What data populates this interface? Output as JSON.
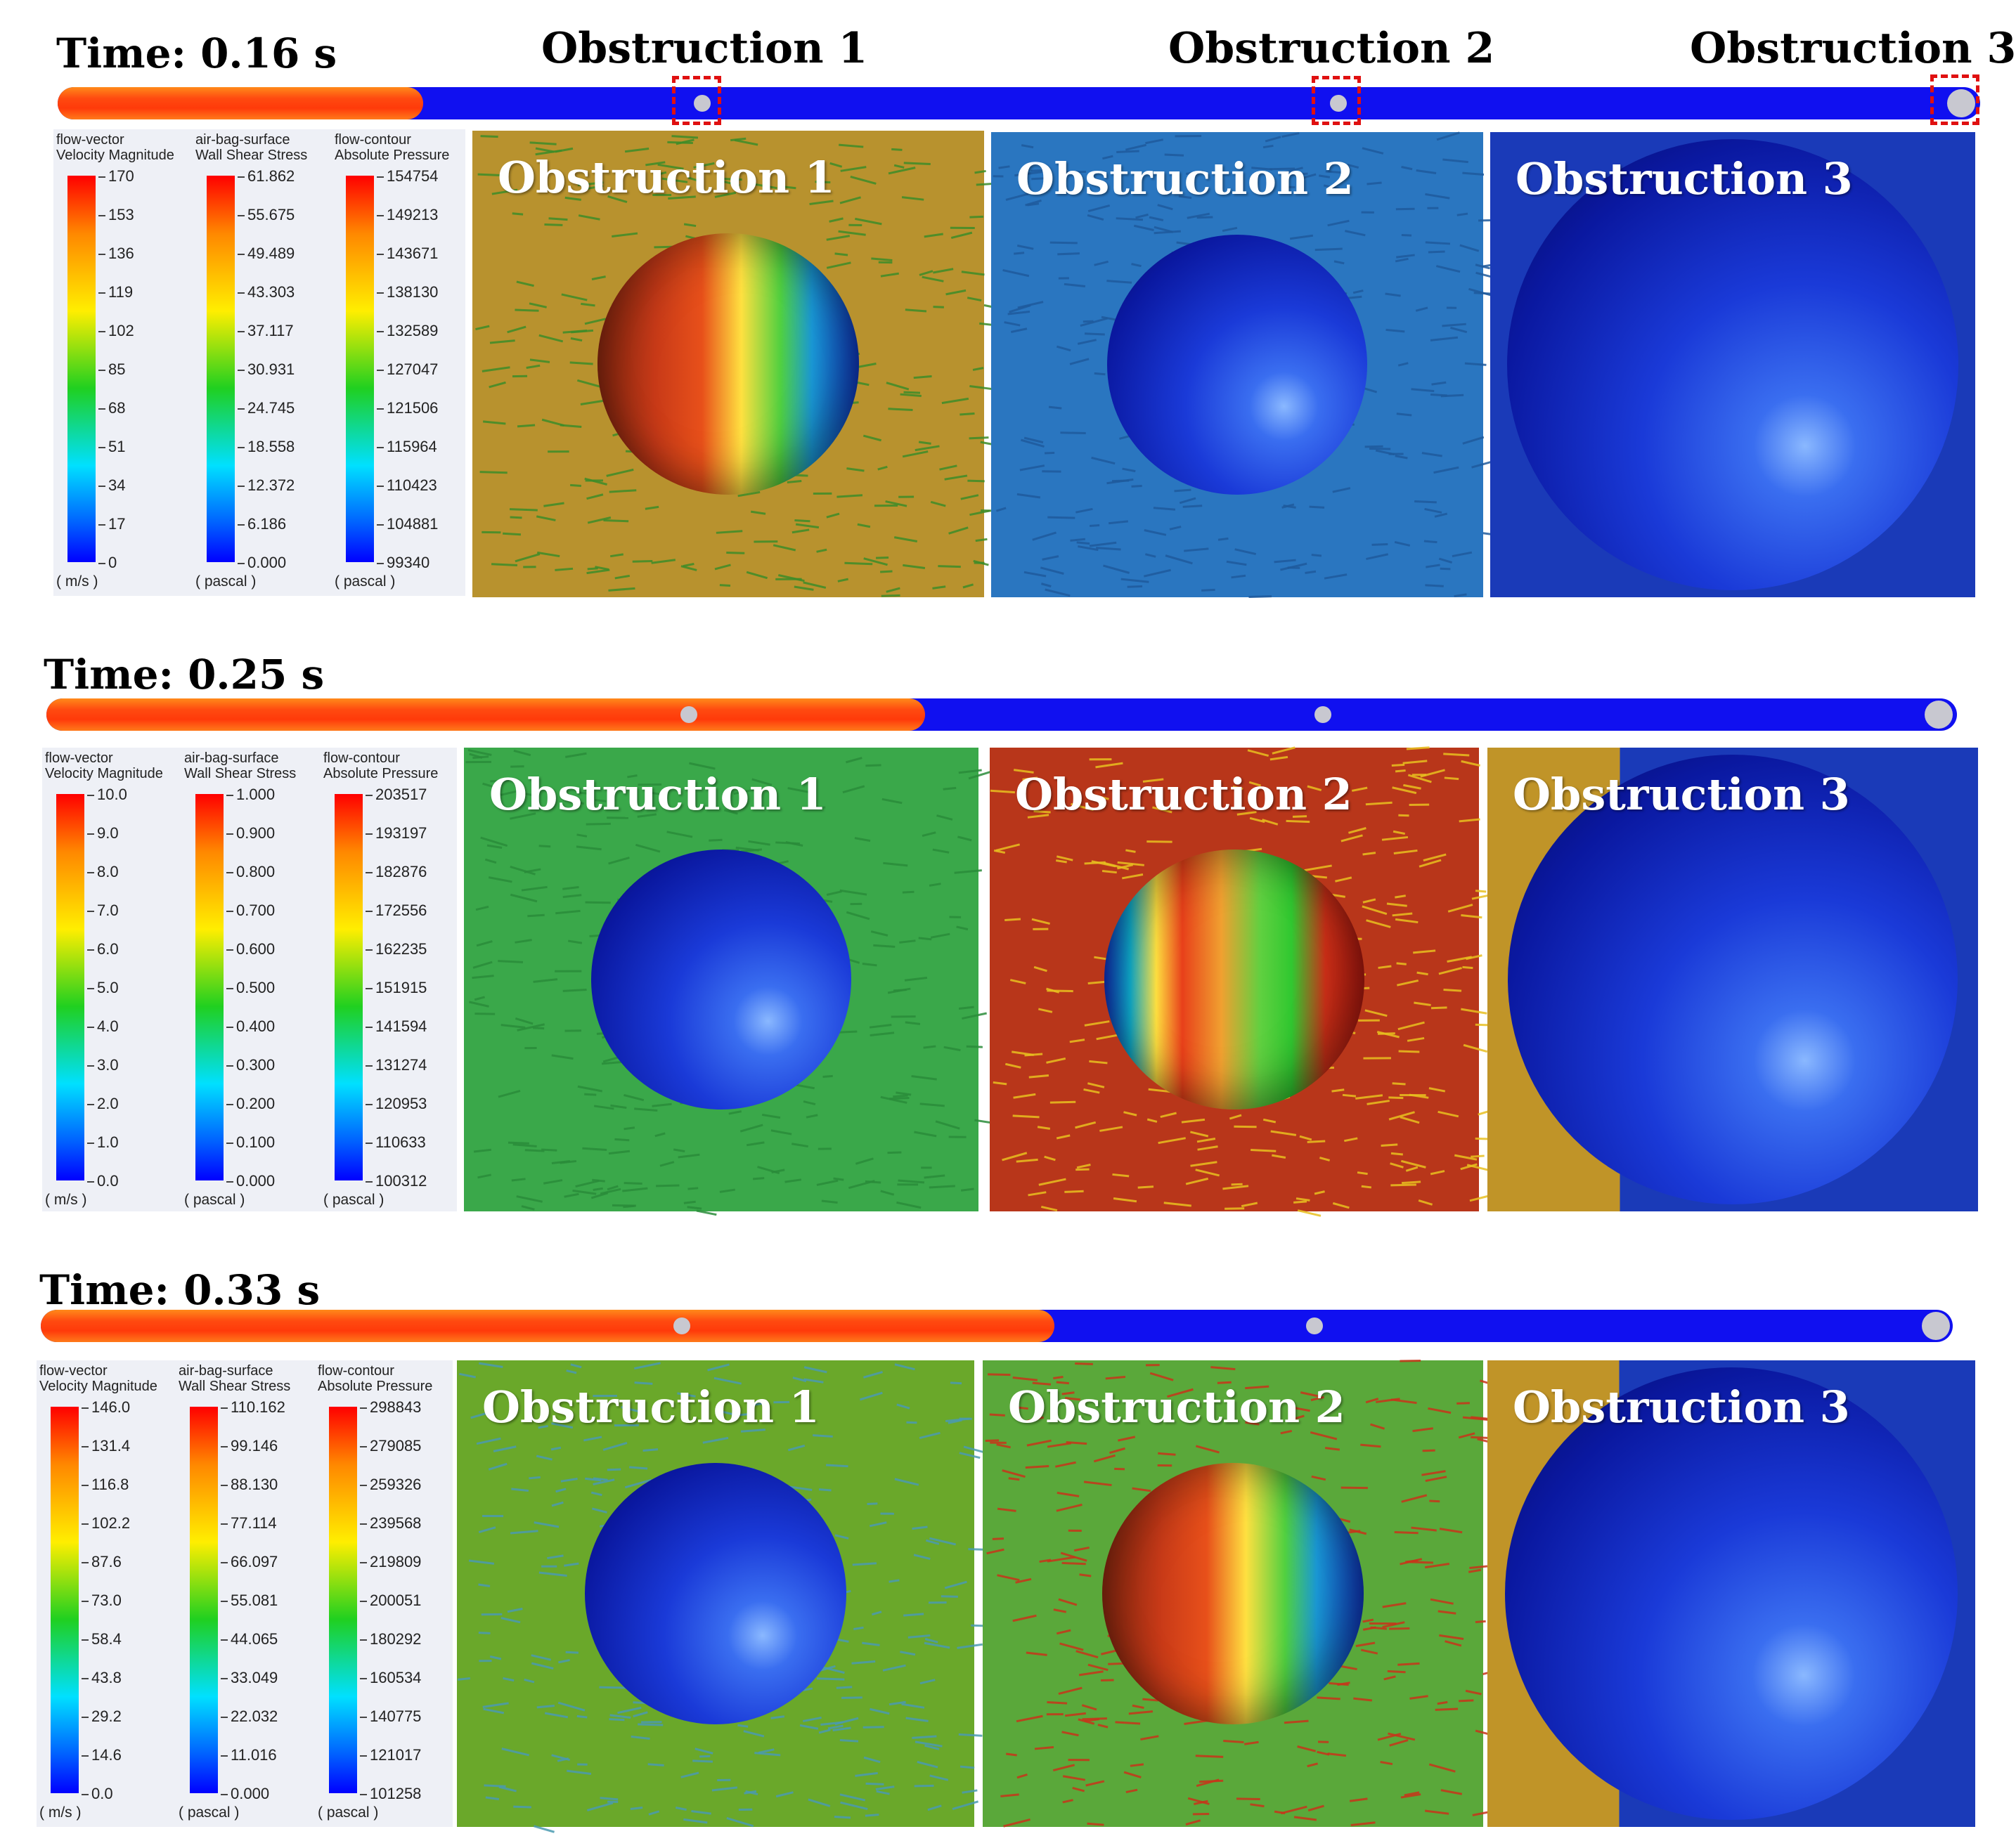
{
  "channel_headers": [
    "Obstruction 1",
    "Obstruction 2",
    "Obstruction 3"
  ],
  "panel_label_prefix": "Obstruction",
  "snapshots": [
    {
      "time": "Time: 0.16 s",
      "fill_fraction": 0.19,
      "legends": [
        {
          "title1": "flow-vector",
          "title2": "Velocity Magnitude",
          "ticks": [
            "170",
            "153",
            "136",
            "119",
            "102",
            "85",
            "68",
            "51",
            "34",
            "17",
            "0"
          ],
          "unit": "( m/s )"
        },
        {
          "title1": "air-bag-surface",
          "title2": "Wall Shear Stress",
          "ticks": [
            "61.862",
            "55.675",
            "49.489",
            "43.303",
            "37.117",
            "30.931",
            "24.745",
            "18.558",
            "12.372",
            "6.186",
            "0.000"
          ],
          "unit": "( pascal )"
        },
        {
          "title1": "flow-contour",
          "title2": "Absolute Pressure",
          "ticks": [
            "154754",
            "149213",
            "143671",
            "138130",
            "132589",
            "127047",
            "121506",
            "115964",
            "110423",
            "104881",
            "99340"
          ],
          "unit": "( pascal )"
        }
      ],
      "panels": [
        {
          "label": "Obstruction 1",
          "bg": "#b8922e",
          "sphere": "hot",
          "arrows": "#3c8c28"
        },
        {
          "label": "Obstruction 2",
          "bg": "#2a76c0",
          "sphere": "blue",
          "arrows": "#1e5a9c"
        },
        {
          "label": "Obstruction 3",
          "bg": "#1a3ab8",
          "sphere": "blue-big",
          "arrows": ""
        }
      ]
    },
    {
      "time": "Time: 0.25 s",
      "fill_fraction": 0.46,
      "legends": [
        {
          "title1": "flow-vector",
          "title2": "Velocity Magnitude",
          "ticks": [
            "10.0",
            "9.0",
            "8.0",
            "7.0",
            "6.0",
            "5.0",
            "4.0",
            "3.0",
            "2.0",
            "1.0",
            "0.0"
          ],
          "unit": "( m/s )"
        },
        {
          "title1": "air-bag-surface",
          "title2": "Wall Shear Stress",
          "ticks": [
            "1.000",
            "0.900",
            "0.800",
            "0.700",
            "0.600",
            "0.500",
            "0.400",
            "0.300",
            "0.200",
            "0.100",
            "0.000"
          ],
          "unit": "( pascal )"
        },
        {
          "title1": "flow-contour",
          "title2": "Absolute Pressure",
          "ticks": [
            "203517",
            "193197",
            "182876",
            "172556",
            "162235",
            "151915",
            "141594",
            "131274",
            "120953",
            "110633",
            "100312"
          ],
          "unit": "( pascal )"
        }
      ],
      "panels": [
        {
          "label": "Obstruction 1",
          "bg": "#3aa84a",
          "sphere": "blue",
          "arrows": "#2a8c3a"
        },
        {
          "label": "Obstruction 2",
          "bg": "#b8361a",
          "sphere": "hot2",
          "arrows": "#e8c020"
        },
        {
          "label": "Obstruction 3",
          "bg": "#c09428",
          "sphere": "blue-big",
          "arrows": ""
        }
      ]
    },
    {
      "time": "Time: 0.33 s",
      "fill_fraction": 0.53,
      "legends": [
        {
          "title1": "flow-vector",
          "title2": "Velocity Magnitude",
          "ticks": [
            "146.0",
            "131.4",
            "116.8",
            "102.2",
            "87.6",
            "73.0",
            "58.4",
            "43.8",
            "29.2",
            "14.6",
            "0.0"
          ],
          "unit": "( m/s )"
        },
        {
          "title1": "air-bag-surface",
          "title2": "Wall Shear Stress",
          "ticks": [
            "110.162",
            "99.146",
            "88.130",
            "77.114",
            "66.097",
            "55.081",
            "44.065",
            "33.049",
            "22.032",
            "11.016",
            "0.000"
          ],
          "unit": "( pascal )"
        },
        {
          "title1": "flow-contour",
          "title2": "Absolute Pressure",
          "ticks": [
            "298843",
            "279085",
            "259326",
            "239568",
            "219809",
            "200051",
            "180292",
            "160534",
            "140775",
            "121017",
            "101258"
          ],
          "unit": "( pascal )"
        }
      ],
      "panels": [
        {
          "label": "Obstruction 1",
          "bg": "#6aa82a",
          "sphere": "blue",
          "arrows": "#4a9ab0"
        },
        {
          "label": "Obstruction 2",
          "bg": "#5aa83a",
          "sphere": "hot",
          "arrows": "#c8341a"
        },
        {
          "label": "Obstruction 3",
          "bg": "#c09428",
          "sphere": "blue-big",
          "arrows": ""
        }
      ]
    }
  ]
}
